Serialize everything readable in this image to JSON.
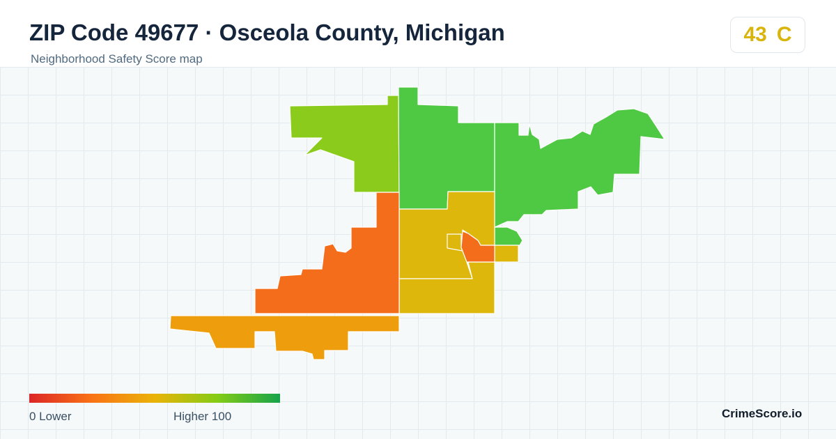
{
  "header": {
    "title": "ZIP Code 49677 · Osceola County, Michigan",
    "subtitle": "Neighborhood Safety Score map"
  },
  "score": {
    "value": "43",
    "grade": "C",
    "color": "#d8b40c"
  },
  "legend": {
    "min_label": "0  Lower",
    "max_label": "Higher  100",
    "gradient_colors": [
      "#dc2626",
      "#f97316",
      "#eab308",
      "#84cc16",
      "#16a34a"
    ]
  },
  "map": {
    "regions": [
      {
        "name": "northwest",
        "color": "#8acb1c"
      },
      {
        "name": "north-center",
        "color": "#4fc843"
      },
      {
        "name": "northeast",
        "color": "#4fc843"
      },
      {
        "name": "east-small",
        "color": "#4fc843"
      },
      {
        "name": "central",
        "color": "#deb70c"
      },
      {
        "name": "central-south",
        "color": "#deb70c"
      },
      {
        "name": "east-notch",
        "color": "#deb70c"
      },
      {
        "name": "west-center",
        "color": "#f46d1b"
      },
      {
        "name": "town-center",
        "color": "#f46d1b"
      },
      {
        "name": "southwest",
        "color": "#ee9e0c"
      }
    ]
  },
  "brand": "CrimeScore.io"
}
